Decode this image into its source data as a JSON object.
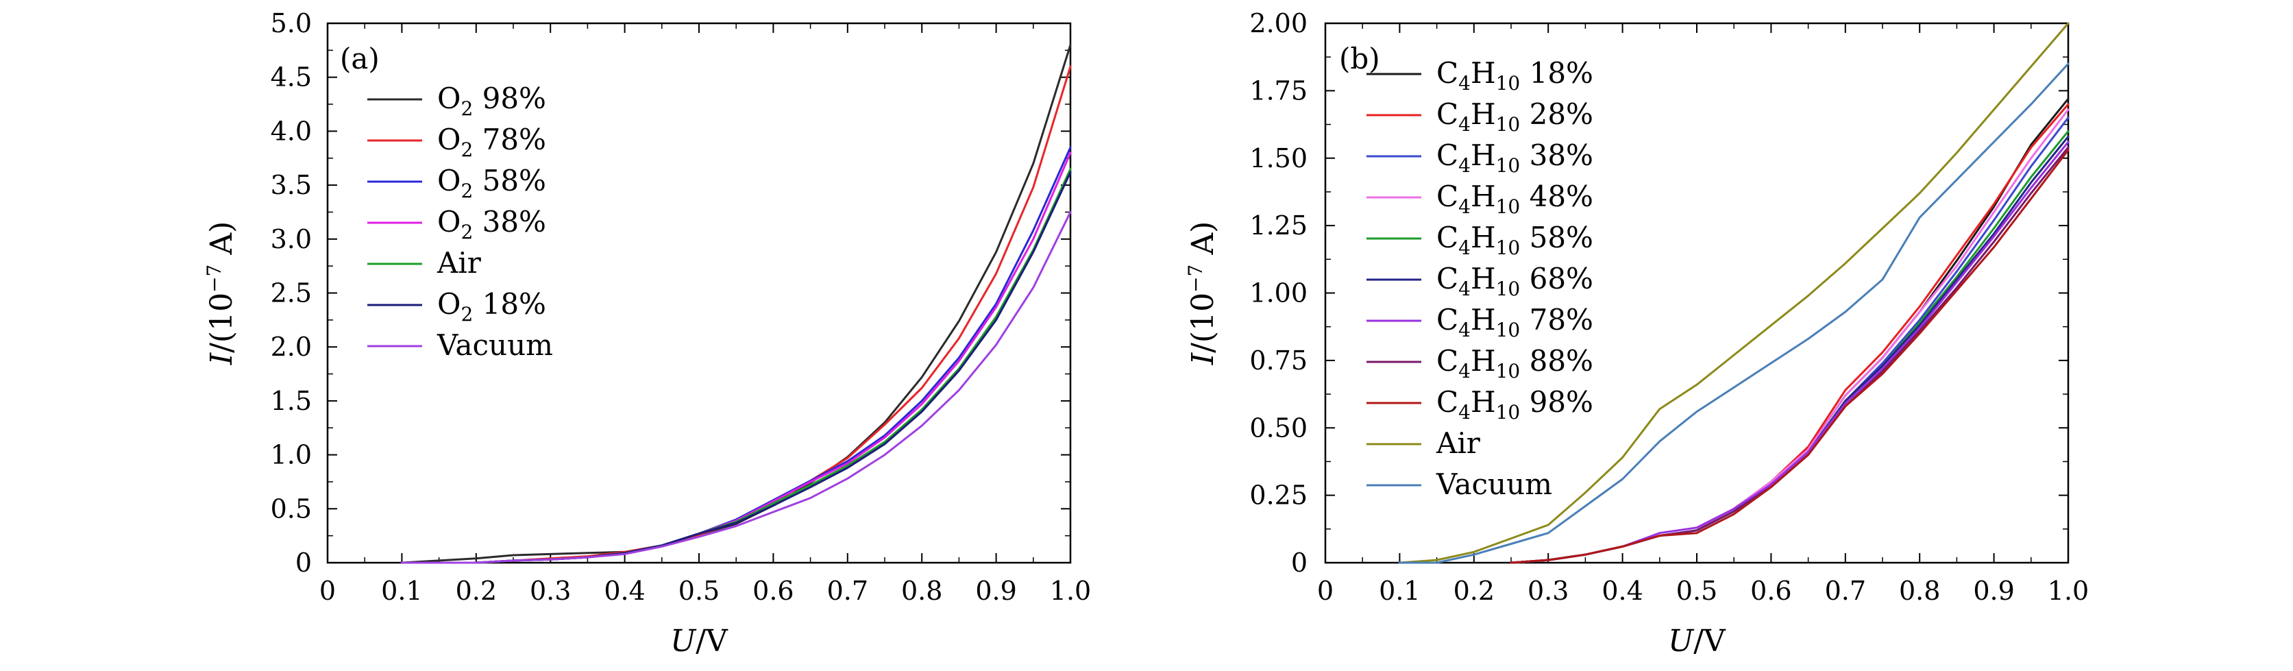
{
  "chart_data": [
    {
      "type": "line",
      "panel_label": "(a)",
      "xlabel": "U/V",
      "ylabel": "I/(10−7 A)",
      "xlim": [
        0,
        1.0
      ],
      "ylim": [
        0,
        5.0
      ],
      "x_ticks": [
        0,
        0.1,
        0.2,
        0.3,
        0.4,
        0.5,
        0.6,
        0.7,
        0.8,
        0.9,
        1.0
      ],
      "x_tick_labels": [
        "0",
        "0.1",
        "0.2",
        "0.3",
        "0.4",
        "0.5",
        "0.6",
        "0.7",
        "0.8",
        "0.9",
        "1.0"
      ],
      "y_ticks": [
        0,
        0.5,
        1.0,
        1.5,
        2.0,
        2.5,
        3.0,
        3.5,
        4.0,
        4.5,
        5.0
      ],
      "y_tick_labels": [
        "0",
        "0.5",
        "1.0",
        "1.5",
        "2.0",
        "2.5",
        "3.0",
        "3.5",
        "4.0",
        "4.5",
        "5.0"
      ],
      "legend_position": "top-left",
      "grid": false,
      "series": [
        {
          "name": "O2 98%",
          "label_main": "O",
          "label_sub": "2",
          "label_tail": " 98%",
          "color": "#2b2b2b",
          "x": [
            0.1,
            0.15,
            0.2,
            0.25,
            0.3,
            0.35,
            0.4,
            0.45,
            0.5,
            0.55,
            0.6,
            0.65,
            0.7,
            0.75,
            0.8,
            0.85,
            0.9,
            0.95,
            1.0
          ],
          "y": [
            0.0,
            0.02,
            0.04,
            0.07,
            0.08,
            0.09,
            0.1,
            0.16,
            0.26,
            0.36,
            0.53,
            0.74,
            0.98,
            1.3,
            1.72,
            2.24,
            2.88,
            3.7,
            4.8
          ]
        },
        {
          "name": "O2 78%",
          "label_main": "O",
          "label_sub": "2",
          "label_tail": " 78%",
          "color": "#e8262a",
          "x": [
            0.1,
            0.15,
            0.2,
            0.25,
            0.3,
            0.35,
            0.4,
            0.45,
            0.5,
            0.55,
            0.6,
            0.65,
            0.7,
            0.75,
            0.8,
            0.85,
            0.9,
            0.95,
            1.0
          ],
          "y": [
            0.0,
            0.0,
            0.0,
            0.02,
            0.04,
            0.06,
            0.1,
            0.16,
            0.26,
            0.38,
            0.56,
            0.76,
            0.97,
            1.28,
            1.62,
            2.08,
            2.68,
            3.48,
            4.6
          ]
        },
        {
          "name": "O2 58%",
          "label_main": "O",
          "label_sub": "2",
          "label_tail": " 58%",
          "color": "#2828d8",
          "x": [
            0.1,
            0.15,
            0.2,
            0.25,
            0.3,
            0.35,
            0.4,
            0.45,
            0.5,
            0.55,
            0.6,
            0.65,
            0.7,
            0.75,
            0.8,
            0.85,
            0.9,
            0.95,
            1.0
          ],
          "y": [
            0.0,
            0.0,
            0.0,
            0.02,
            0.03,
            0.05,
            0.09,
            0.16,
            0.27,
            0.4,
            0.58,
            0.76,
            0.94,
            1.18,
            1.5,
            1.9,
            2.4,
            3.08,
            3.85
          ]
        },
        {
          "name": "O2 38%",
          "label_main": "O",
          "label_sub": "2",
          "label_tail": " 38%",
          "color": "#e020e0",
          "x": [
            0.1,
            0.15,
            0.2,
            0.25,
            0.3,
            0.35,
            0.4,
            0.45,
            0.5,
            0.55,
            0.6,
            0.65,
            0.7,
            0.75,
            0.8,
            0.85,
            0.9,
            0.95,
            1.0
          ],
          "y": [
            0.0,
            0.0,
            0.0,
            0.02,
            0.03,
            0.05,
            0.09,
            0.16,
            0.27,
            0.39,
            0.57,
            0.75,
            0.92,
            1.16,
            1.47,
            1.87,
            2.37,
            3.0,
            3.8
          ]
        },
        {
          "name": "Air",
          "label_main": "Air",
          "label_sub": "",
          "label_tail": "",
          "color": "#1f9e2a",
          "x": [
            0.1,
            0.15,
            0.2,
            0.25,
            0.3,
            0.35,
            0.4,
            0.45,
            0.5,
            0.55,
            0.6,
            0.65,
            0.7,
            0.75,
            0.8,
            0.85,
            0.9,
            0.95,
            1.0
          ],
          "y": [
            0.0,
            0.0,
            0.0,
            0.02,
            0.03,
            0.05,
            0.09,
            0.16,
            0.27,
            0.38,
            0.55,
            0.72,
            0.9,
            1.12,
            1.42,
            1.8,
            2.28,
            2.9,
            3.65
          ]
        },
        {
          "name": "O2 18%",
          "label_main": "O",
          "label_sub": "2",
          "label_tail": " 18%",
          "color": "#1c1c7a",
          "x": [
            0.1,
            0.15,
            0.2,
            0.25,
            0.3,
            0.35,
            0.4,
            0.45,
            0.5,
            0.55,
            0.6,
            0.65,
            0.7,
            0.75,
            0.8,
            0.85,
            0.9,
            0.95,
            1.0
          ],
          "y": [
            0.0,
            0.0,
            0.0,
            0.02,
            0.03,
            0.05,
            0.09,
            0.16,
            0.27,
            0.37,
            0.53,
            0.7,
            0.88,
            1.1,
            1.4,
            1.78,
            2.25,
            2.88,
            3.62
          ]
        },
        {
          "name": "Vacuum",
          "label_main": "Vacuum",
          "label_sub": "",
          "label_tail": "",
          "color": "#a040e0",
          "x": [
            0.1,
            0.15,
            0.2,
            0.25,
            0.3,
            0.35,
            0.4,
            0.45,
            0.5,
            0.55,
            0.6,
            0.65,
            0.7,
            0.75,
            0.8,
            0.85,
            0.9,
            0.95,
            1.0
          ],
          "y": [
            0.0,
            0.0,
            0.0,
            0.02,
            0.03,
            0.05,
            0.08,
            0.15,
            0.24,
            0.34,
            0.47,
            0.6,
            0.78,
            1.0,
            1.27,
            1.6,
            2.02,
            2.55,
            3.25
          ]
        }
      ]
    },
    {
      "type": "line",
      "panel_label": "(b)",
      "xlabel": "U/V",
      "ylabel": "I/(10−7 A)",
      "xlim": [
        0,
        1.0
      ],
      "ylim": [
        0,
        2.0
      ],
      "x_ticks": [
        0,
        0.1,
        0.2,
        0.3,
        0.4,
        0.5,
        0.6,
        0.7,
        0.8,
        0.9,
        1.0
      ],
      "x_tick_labels": [
        "0",
        "0.1",
        "0.2",
        "0.3",
        "0.4",
        "0.5",
        "0.6",
        "0.7",
        "0.8",
        "0.9",
        "1.0"
      ],
      "y_ticks": [
        0,
        0.25,
        0.5,
        0.75,
        1.0,
        1.25,
        1.5,
        1.75,
        2.0
      ],
      "y_tick_labels": [
        "0",
        "0.25",
        "0.50",
        "0.75",
        "1.00",
        "1.25",
        "1.50",
        "1.75",
        "2.00"
      ],
      "legend_position": "top-left",
      "grid": false,
      "series": [
        {
          "name": "C4H10 18%",
          "label_main": "C",
          "label_sub": "4",
          "label_mid": "H",
          "label_sub2": "10",
          "label_tail": " 18%",
          "color": "#1a1a1a",
          "x": [
            0.25,
            0.3,
            0.35,
            0.4,
            0.45,
            0.5,
            0.55,
            0.6,
            0.65,
            0.7,
            0.75,
            0.8,
            0.85,
            0.9,
            0.95,
            1.0
          ],
          "y": [
            0.0,
            0.01,
            0.03,
            0.06,
            0.1,
            0.12,
            0.2,
            0.3,
            0.42,
            0.62,
            0.76,
            0.93,
            1.12,
            1.32,
            1.55,
            1.72
          ]
        },
        {
          "name": "C4H10 28%",
          "label_main": "C",
          "label_sub": "4",
          "label_mid": "H",
          "label_sub2": "10",
          "label_tail": " 28%",
          "color": "#e82020",
          "x": [
            0.25,
            0.3,
            0.35,
            0.4,
            0.45,
            0.5,
            0.55,
            0.6,
            0.65,
            0.7,
            0.75,
            0.8,
            0.85,
            0.9,
            0.95,
            1.0
          ],
          "y": [
            0.0,
            0.01,
            0.03,
            0.06,
            0.1,
            0.12,
            0.2,
            0.3,
            0.43,
            0.64,
            0.78,
            0.95,
            1.14,
            1.33,
            1.54,
            1.7
          ]
        },
        {
          "name": "C4H10 38%",
          "label_main": "C",
          "label_sub": "4",
          "label_mid": "H",
          "label_sub2": "10",
          "label_tail": " 38%",
          "color": "#3a4ad0",
          "x": [
            0.25,
            0.3,
            0.35,
            0.4,
            0.45,
            0.5,
            0.55,
            0.6,
            0.65,
            0.7,
            0.75,
            0.8,
            0.85,
            0.9,
            0.95,
            1.0
          ],
          "y": [
            0.0,
            0.01,
            0.03,
            0.06,
            0.1,
            0.12,
            0.19,
            0.29,
            0.41,
            0.6,
            0.74,
            0.9,
            1.08,
            1.27,
            1.47,
            1.65
          ]
        },
        {
          "name": "C4H10 48%",
          "label_main": "C",
          "label_sub": "4",
          "label_mid": "H",
          "label_sub2": "10",
          "label_tail": " 48%",
          "color": "#f070e8",
          "x": [
            0.25,
            0.3,
            0.35,
            0.4,
            0.45,
            0.5,
            0.55,
            0.6,
            0.65,
            0.7,
            0.75,
            0.8,
            0.85,
            0.9,
            0.95,
            1.0
          ],
          "y": [
            0.0,
            0.01,
            0.03,
            0.06,
            0.1,
            0.12,
            0.2,
            0.3,
            0.42,
            0.62,
            0.76,
            0.93,
            1.1,
            1.3,
            1.5,
            1.68
          ]
        },
        {
          "name": "C4H10 58%",
          "label_main": "C",
          "label_sub": "4",
          "label_mid": "H",
          "label_sub2": "10",
          "label_tail": " 58%",
          "color": "#1e9a2a",
          "x": [
            0.25,
            0.3,
            0.35,
            0.4,
            0.45,
            0.5,
            0.55,
            0.6,
            0.65,
            0.7,
            0.75,
            0.8,
            0.85,
            0.9,
            0.95,
            1.0
          ],
          "y": [
            0.0,
            0.01,
            0.03,
            0.06,
            0.1,
            0.12,
            0.19,
            0.29,
            0.41,
            0.6,
            0.73,
            0.89,
            1.06,
            1.24,
            1.43,
            1.6
          ]
        },
        {
          "name": "C4H10 68%",
          "label_main": "C",
          "label_sub": "4",
          "label_mid": "H",
          "label_sub2": "10",
          "label_tail": " 68%",
          "color": "#24248a",
          "x": [
            0.25,
            0.3,
            0.35,
            0.4,
            0.45,
            0.5,
            0.55,
            0.6,
            0.65,
            0.7,
            0.75,
            0.8,
            0.85,
            0.9,
            0.95,
            1.0
          ],
          "y": [
            0.0,
            0.01,
            0.03,
            0.06,
            0.1,
            0.12,
            0.19,
            0.29,
            0.41,
            0.6,
            0.73,
            0.88,
            1.05,
            1.22,
            1.41,
            1.58
          ]
        },
        {
          "name": "C4H10 78%",
          "label_main": "C",
          "label_sub": "4",
          "label_mid": "H",
          "label_sub2": "10",
          "label_tail": " 78%",
          "color": "#9a30e0",
          "x": [
            0.25,
            0.3,
            0.35,
            0.4,
            0.45,
            0.5,
            0.55,
            0.6,
            0.65,
            0.7,
            0.75,
            0.8,
            0.85,
            0.9,
            0.95,
            1.0
          ],
          "y": [
            0.0,
            0.01,
            0.03,
            0.06,
            0.11,
            0.13,
            0.2,
            0.29,
            0.41,
            0.59,
            0.72,
            0.87,
            1.04,
            1.21,
            1.39,
            1.56
          ]
        },
        {
          "name": "C4H10 88%",
          "label_main": "C",
          "label_sub": "4",
          "label_mid": "H",
          "label_sub2": "10",
          "label_tail": " 88%",
          "color": "#7a1a6a",
          "x": [
            0.25,
            0.3,
            0.35,
            0.4,
            0.45,
            0.5,
            0.55,
            0.6,
            0.65,
            0.7,
            0.75,
            0.8,
            0.85,
            0.9,
            0.95,
            1.0
          ],
          "y": [
            0.0,
            0.01,
            0.03,
            0.06,
            0.1,
            0.12,
            0.19,
            0.28,
            0.4,
            0.58,
            0.71,
            0.86,
            1.02,
            1.19,
            1.37,
            1.54
          ]
        },
        {
          "name": "C4H10 98%",
          "label_main": "C",
          "label_sub": "4",
          "label_mid": "H",
          "label_sub2": "10",
          "label_tail": " 98%",
          "color": "#b01818",
          "x": [
            0.25,
            0.3,
            0.35,
            0.4,
            0.45,
            0.5,
            0.55,
            0.6,
            0.65,
            0.7,
            0.75,
            0.8,
            0.85,
            0.9,
            0.95,
            1.0
          ],
          "y": [
            0.0,
            0.01,
            0.03,
            0.06,
            0.1,
            0.11,
            0.18,
            0.28,
            0.4,
            0.58,
            0.7,
            0.85,
            1.01,
            1.17,
            1.35,
            1.53
          ]
        },
        {
          "name": "Air",
          "label_main": "Air",
          "label_sub": "",
          "label_mid": "",
          "label_sub2": "",
          "label_tail": "",
          "color": "#8c8a1a",
          "x": [
            0.1,
            0.15,
            0.2,
            0.25,
            0.3,
            0.35,
            0.4,
            0.45,
            0.5,
            0.55,
            0.6,
            0.65,
            0.7,
            0.75,
            0.8,
            0.85,
            0.9,
            0.95,
            1.0
          ],
          "y": [
            0.0,
            0.01,
            0.04,
            0.09,
            0.14,
            0.26,
            0.39,
            0.57,
            0.66,
            0.77,
            0.88,
            0.99,
            1.11,
            1.24,
            1.37,
            1.52,
            1.68,
            1.84,
            2.0
          ]
        },
        {
          "name": "Vacuum",
          "label_main": "Vacuum",
          "label_sub": "",
          "label_mid": "",
          "label_sub2": "",
          "label_tail": "",
          "color": "#4a7fb8",
          "x": [
            0.1,
            0.15,
            0.2,
            0.25,
            0.3,
            0.35,
            0.4,
            0.45,
            0.5,
            0.55,
            0.6,
            0.65,
            0.7,
            0.75,
            0.8,
            0.85,
            0.9,
            0.95,
            1.0
          ],
          "y": [
            0.0,
            0.0,
            0.03,
            0.07,
            0.11,
            0.21,
            0.31,
            0.45,
            0.56,
            0.65,
            0.74,
            0.83,
            0.93,
            1.05,
            1.28,
            1.42,
            1.56,
            1.7,
            1.85
          ]
        }
      ]
    }
  ]
}
